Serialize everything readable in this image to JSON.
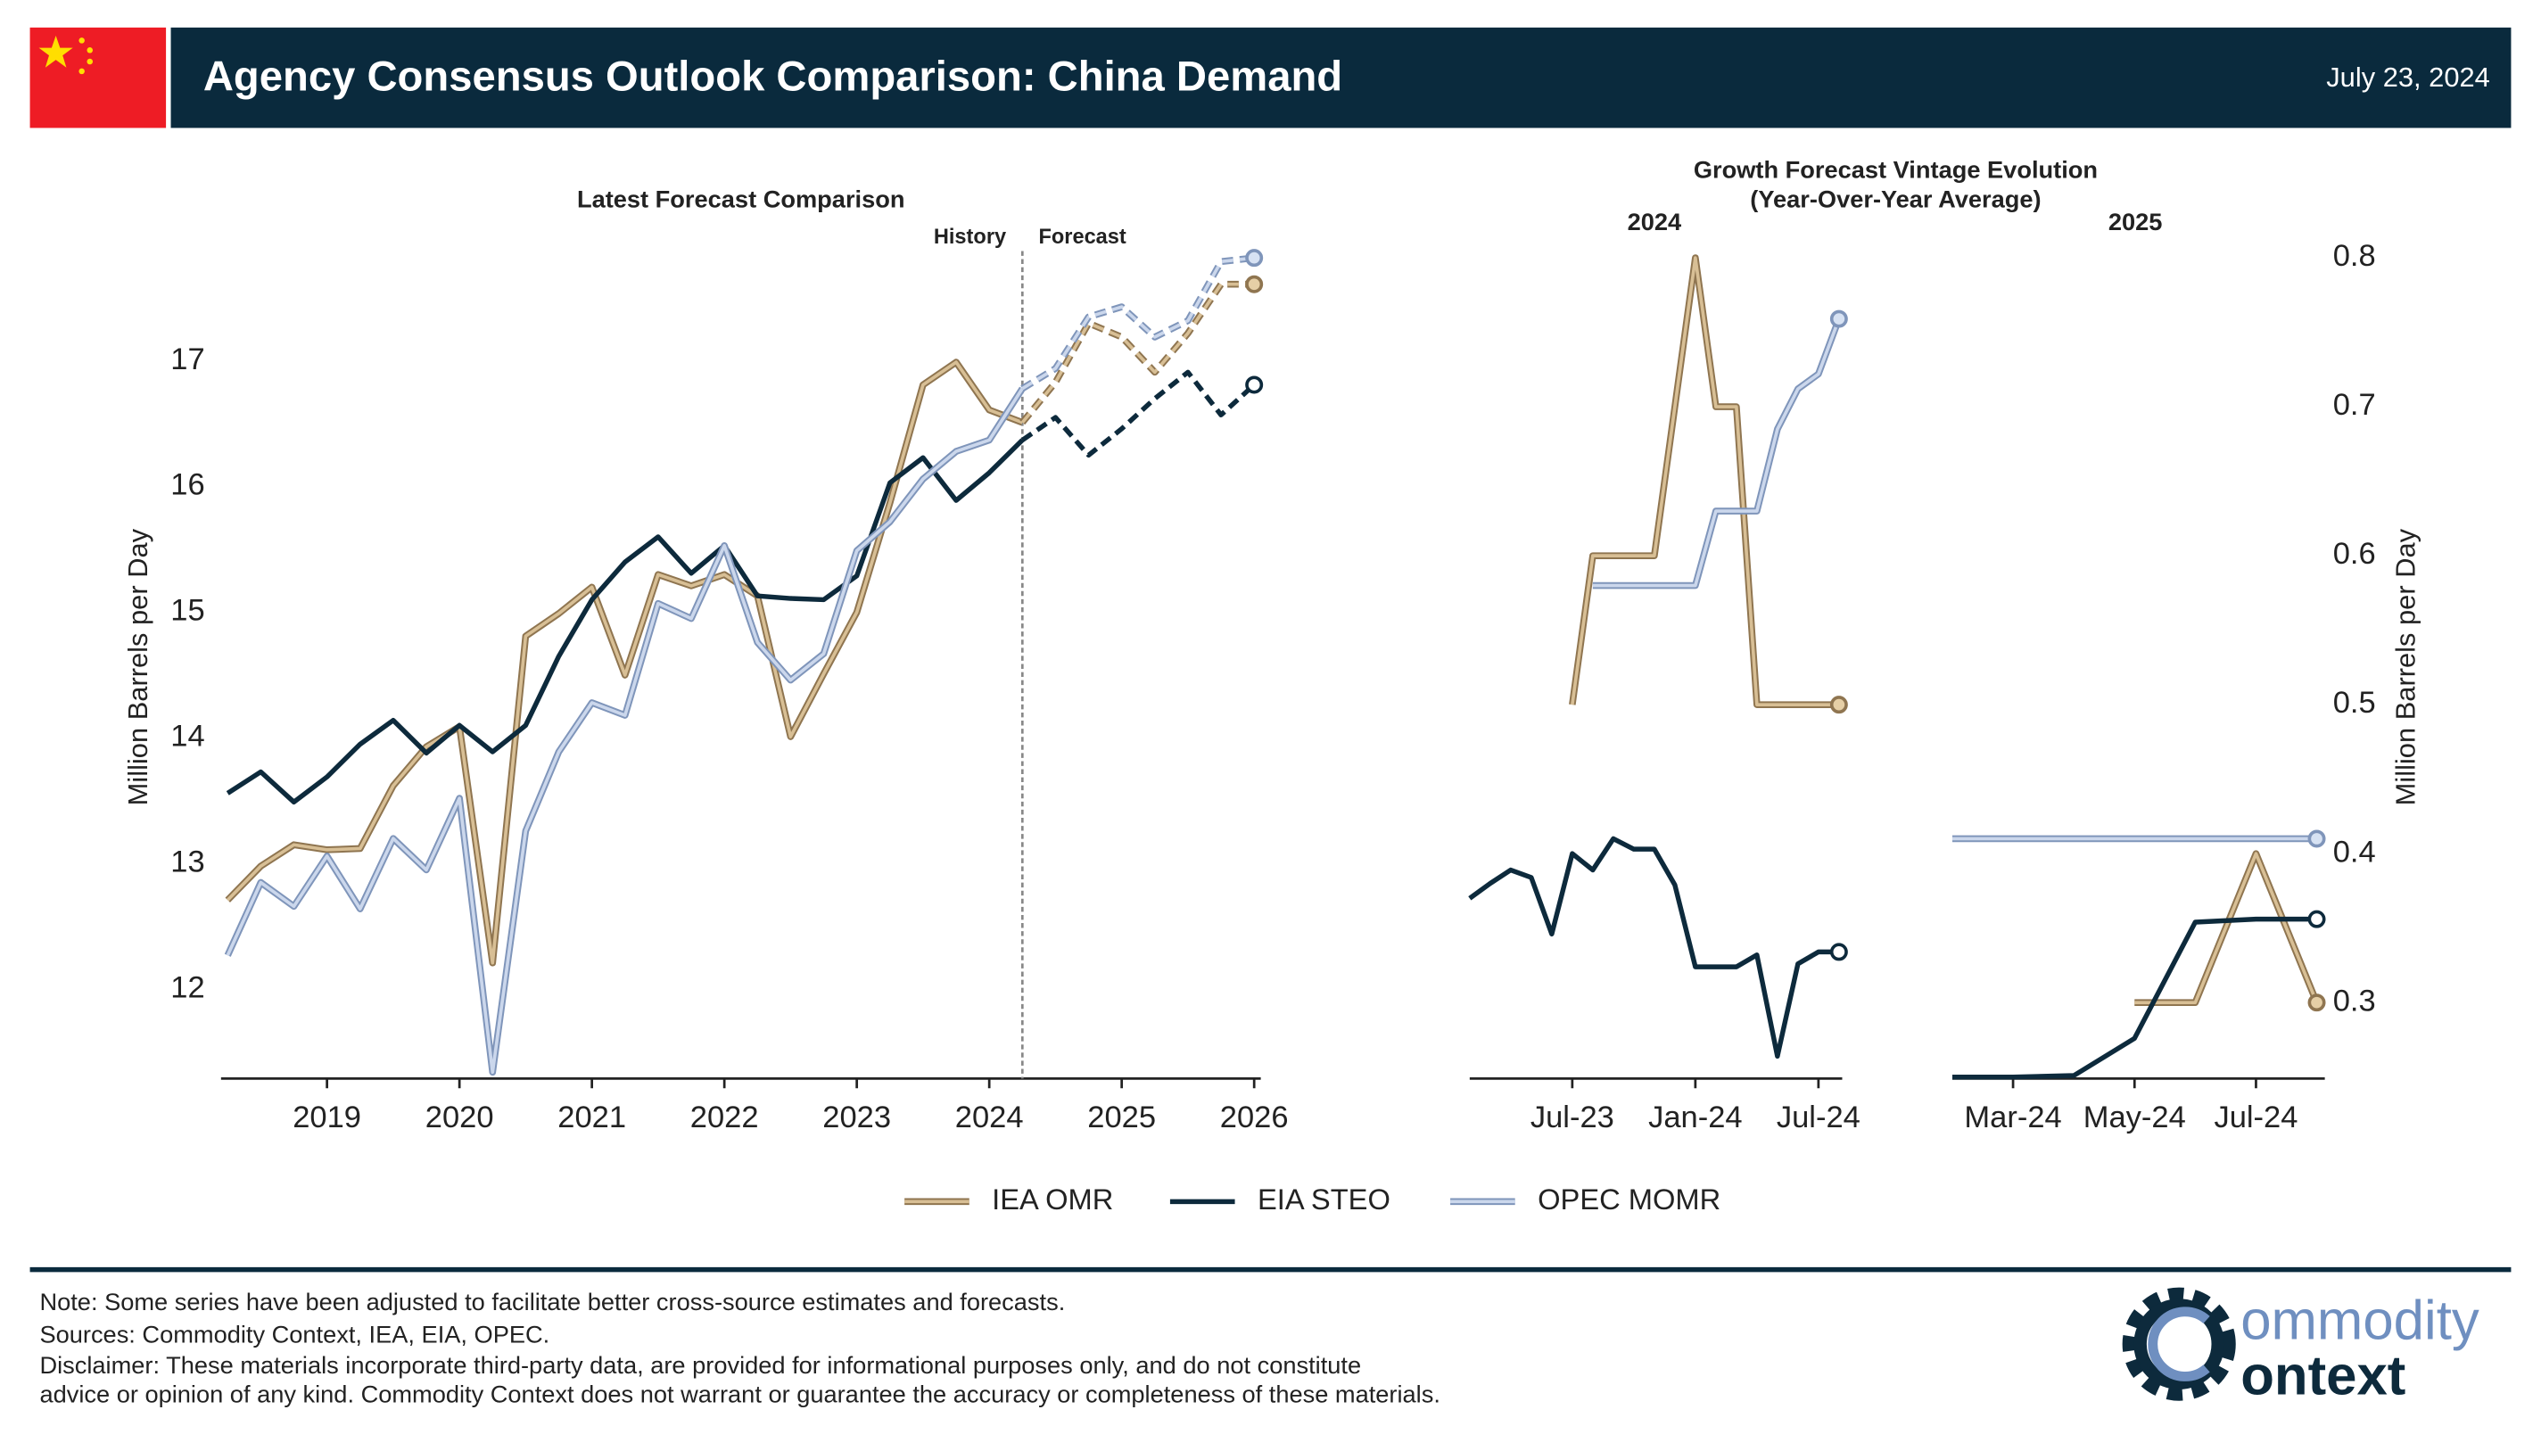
{
  "header": {
    "title": "Agency Consensus Outlook Comparison: China Demand",
    "date": "July 23, 2024"
  },
  "vintage_group": {
    "title": [
      "Growth Forecast Vintage Evolution",
      "(Year-Over-Year Average)"
    ],
    "ylabel": "Million Barrels per Day"
  },
  "chart_data": [
    {
      "type": "line",
      "title": "Latest Forecast Comparison",
      "ylabel": "Million Barrels per Day",
      "forecast_start": 2024.25,
      "annotations": [
        "History",
        "Forecast"
      ],
      "x": [
        2018.25,
        2018.5,
        2018.75,
        2019.0,
        2019.25,
        2019.5,
        2019.75,
        2020.0,
        2020.25,
        2020.5,
        2020.75,
        2021.0,
        2021.25,
        2021.5,
        2021.75,
        2022.0,
        2022.25,
        2022.5,
        2022.75,
        2023.0,
        2023.25,
        2023.5,
        2023.75,
        2024.0,
        2024.25,
        2024.5,
        2024.75,
        2025.0,
        2025.25,
        2025.5,
        2025.75,
        2026.0
      ],
      "xlim": [
        2018.2,
        2026.05
      ],
      "xticks": [
        2019,
        2020,
        2021,
        2022,
        2023,
        2024,
        2025,
        2026
      ],
      "ylim": [
        11.29,
        17.81
      ],
      "yticks": [
        12,
        13,
        14,
        15,
        16,
        17
      ],
      "series": [
        {
          "name": "IEA OMR",
          "color": "#d8bf95",
          "edgecolor": "#8f7550",
          "marker_fill": "#e6cfa6",
          "values": [
            12.71,
            12.98,
            13.15,
            13.11,
            13.12,
            13.62,
            13.93,
            14.09,
            12.21,
            14.81,
            14.99,
            15.2,
            14.5,
            15.3,
            15.21,
            15.3,
            15.13,
            14.01,
            14.51,
            15.0,
            15.87,
            16.81,
            16.99,
            16.61,
            16.51,
            16.83,
            17.3,
            17.19,
            16.91,
            17.22,
            17.61,
            17.61
          ]
        },
        {
          "name": "EIA STEO",
          "color": "#0d2a3c",
          "edgecolor": "#0d2a3c",
          "marker_fill": "#ffffff",
          "values": [
            13.56,
            13.73,
            13.49,
            13.69,
            13.95,
            14.14,
            13.88,
            14.1,
            13.89,
            14.1,
            14.65,
            15.1,
            15.4,
            15.6,
            15.31,
            15.53,
            15.13,
            15.11,
            15.1,
            15.29,
            16.03,
            16.23,
            15.89,
            16.11,
            16.37,
            16.55,
            16.25,
            16.46,
            16.7,
            16.91,
            16.57,
            16.81
          ]
        },
        {
          "name": "OPEC MOMR",
          "color": "#cbd7ec",
          "edgecolor": "#7f95ba",
          "marker_fill": "#d7e2f3",
          "values": [
            12.27,
            12.85,
            12.66,
            13.06,
            12.64,
            13.2,
            12.95,
            13.52,
            11.34,
            13.26,
            13.89,
            14.28,
            14.18,
            15.07,
            14.95,
            15.53,
            14.76,
            14.46,
            14.67,
            15.49,
            15.72,
            16.06,
            16.28,
            16.37,
            16.78,
            16.94,
            17.35,
            17.43,
            17.19,
            17.32,
            17.79,
            17.82
          ]
        }
      ]
    },
    {
      "type": "line",
      "title": "2024",
      "x": [
        "2023-02",
        "2023-03",
        "2023-04",
        "2023-05",
        "2023-06",
        "2023-07",
        "2023-08",
        "2023-09",
        "2023-10",
        "2023-11",
        "2023-12",
        "2024-01",
        "2024-02",
        "2024-03",
        "2024-04",
        "2024-05",
        "2024-06",
        "2024-07",
        "2024-08"
      ],
      "xlim": [
        "2023-02",
        "2024-08"
      ],
      "xticks": [
        {
          "value": "2023-07",
          "label": "Jul-23"
        },
        {
          "value": "2024-01",
          "label": "Jan-24"
        },
        {
          "value": "2024-07",
          "label": "Jul-24"
        }
      ],
      "ylim": [
        0.249,
        0.81
      ],
      "series": [
        {
          "name": "IEA OMR",
          "color": "#d8bf95",
          "edgecolor": "#8f7550",
          "marker_fill": "#e6cfa6",
          "values": [
            null,
            null,
            null,
            null,
            null,
            0.5,
            0.6,
            0.6,
            0.6,
            0.6,
            0.7,
            0.8,
            0.7,
            0.7,
            0.5,
            0.5,
            0.5,
            0.5,
            0.5
          ]
        },
        {
          "name": "EIA STEO",
          "color": "#0d2a3c",
          "edgecolor": "#0d2a3c",
          "marker_fill": "#ffffff",
          "values": [
            0.37,
            0.38,
            0.389,
            0.384,
            0.346,
            0.4,
            0.389,
            0.41,
            0.403,
            0.403,
            0.379,
            0.324,
            0.324,
            0.324,
            0.332,
            0.264,
            0.326,
            0.334,
            0.334
          ]
        },
        {
          "name": "OPEC MOMR",
          "color": "#cbd7ec",
          "edgecolor": "#7f95ba",
          "marker_fill": "#d7e2f3",
          "values": [
            null,
            null,
            null,
            null,
            null,
            null,
            0.58,
            0.58,
            0.58,
            0.58,
            0.58,
            0.58,
            0.63,
            0.63,
            0.63,
            0.685,
            0.712,
            0.722,
            0.759
          ]
        }
      ]
    },
    {
      "type": "line",
      "title": "2025",
      "x": [
        "2024-02",
        "2024-03",
        "2024-04",
        "2024-05",
        "2024-06",
        "2024-07",
        "2024-08"
      ],
      "xlim": [
        "2024-02",
        "2024-08"
      ],
      "xticks": [
        {
          "value": "2024-03",
          "label": "Mar-24"
        },
        {
          "value": "2024-05",
          "label": "May-24"
        },
        {
          "value": "2024-07",
          "label": "Jul-24"
        }
      ],
      "ylim": [
        0.249,
        0.81
      ],
      "yticks": [
        0.3,
        0.4,
        0.5,
        0.6,
        0.7,
        0.8
      ],
      "series": [
        {
          "name": "IEA OMR",
          "color": "#d8bf95",
          "edgecolor": "#8f7550",
          "marker_fill": "#e6cfa6",
          "values": [
            null,
            null,
            null,
            0.3,
            0.3,
            0.4,
            0.3
          ]
        },
        {
          "name": "EIA STEO",
          "color": "#0d2a3c",
          "edgecolor": "#0d2a3c",
          "marker_fill": "#ffffff",
          "values": [
            0.25,
            0.25,
            0.251,
            0.276,
            0.354,
            0.356,
            0.356
          ]
        },
        {
          "name": "OPEC MOMR",
          "color": "#cbd7ec",
          "edgecolor": "#7f95ba",
          "marker_fill": "#d7e2f3",
          "values": [
            0.41,
            0.41,
            0.41,
            0.41,
            0.41,
            0.41,
            0.41
          ]
        }
      ]
    }
  ],
  "footer": {
    "notes": [
      "Note: Some series have been adjusted to facilitate better cross-source estimates and forecasts.",
      "Sources: Commodity Context, IEA, EIA, OPEC.",
      "Disclaimer: These materials incorporate third-party data, are provided for informational purposes only, and do not constitute",
      "advice or opinion of any kind. Commodity Context does not warrant or guarantee the accuracy or completeness of these materials."
    ],
    "logo": [
      "ommodity",
      "ontext"
    ]
  }
}
